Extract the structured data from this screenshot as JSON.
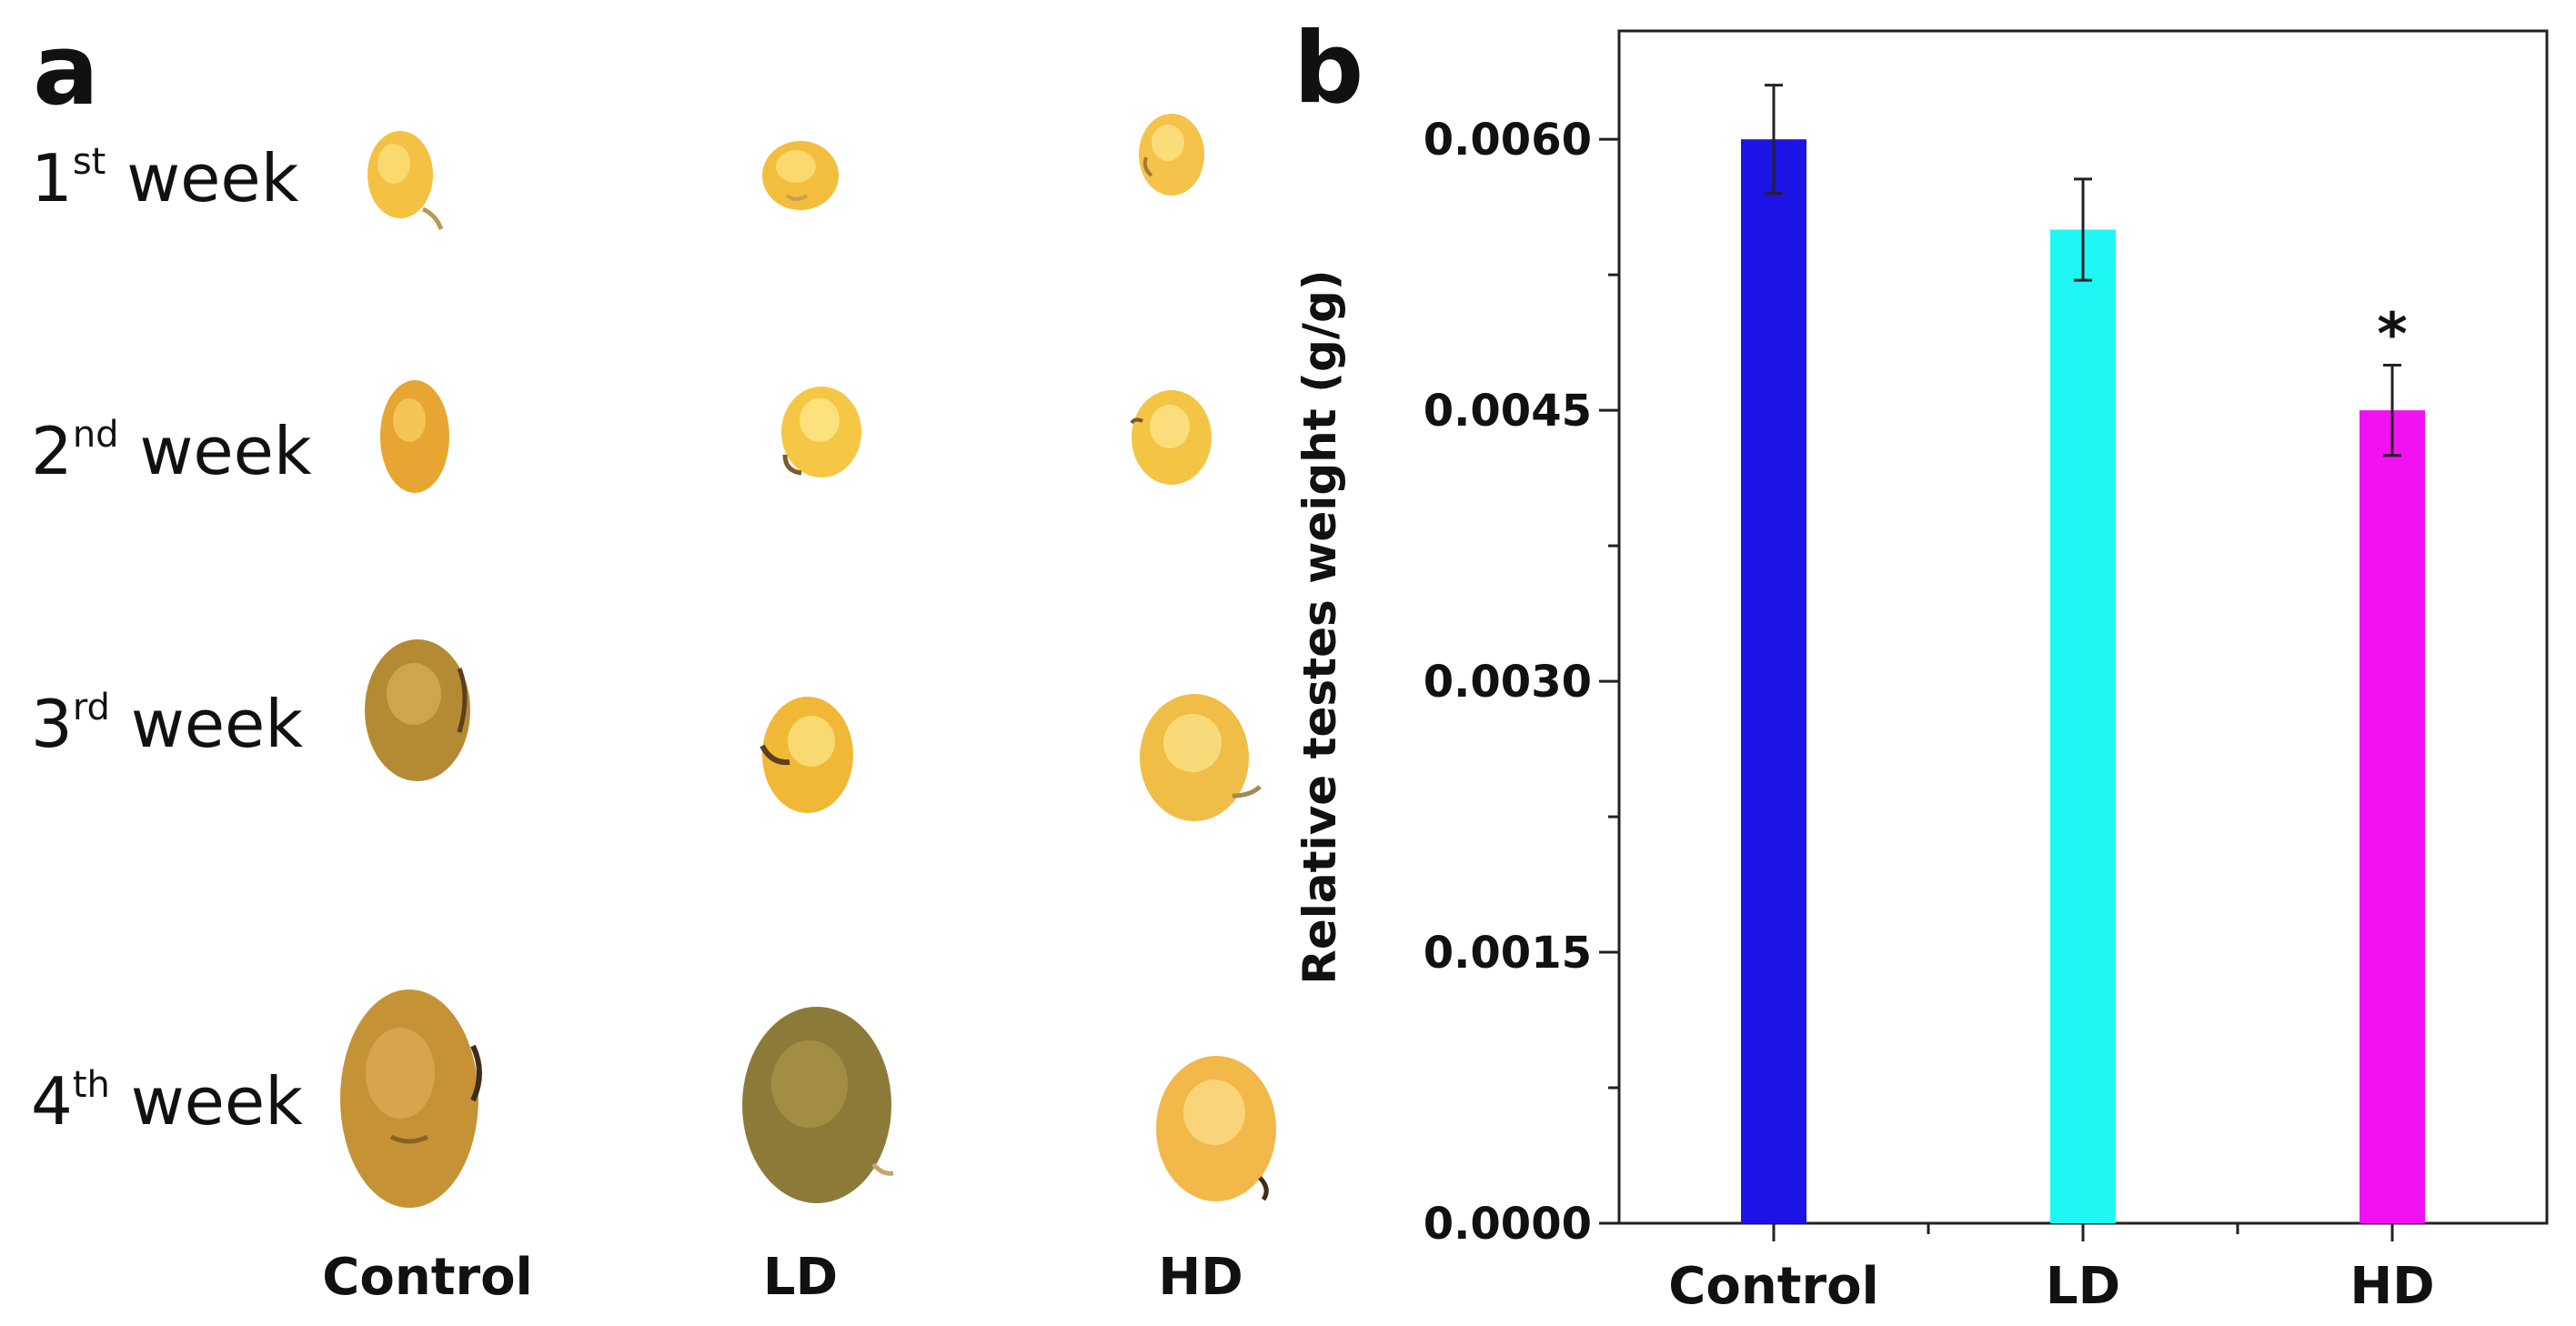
{
  "panel_a": {
    "letter": "a",
    "weeks": [
      {
        "num": "1",
        "sup": "st",
        "word": "week"
      },
      {
        "num": "2",
        "sup": "nd",
        "word": "week"
      },
      {
        "num": "3",
        "sup": "rd",
        "word": "week"
      },
      {
        "num": "4",
        "sup": "th",
        "word": "week"
      }
    ],
    "columns": [
      "Control",
      "LD",
      "HD"
    ]
  },
  "panel_b": {
    "letter": "b"
  },
  "chart_data": {
    "type": "bar",
    "title": "",
    "xlabel": "",
    "ylabel": "Relative testes weight (g/g)",
    "categories": [
      "Control",
      "LD",
      "HD"
    ],
    "values": [
      0.006,
      0.0055,
      0.0045
    ],
    "errors": [
      0.0003,
      0.00028,
      0.00025
    ],
    "colors": [
      "#1c13e6",
      "#1ff7f4",
      "#f012f0"
    ],
    "significance": [
      "",
      "",
      "*"
    ],
    "ylim": [
      0,
      0.0066
    ],
    "yticks": [
      0.0,
      0.0015,
      0.003,
      0.0045,
      0.006
    ],
    "ytick_labels": [
      "0.0000",
      "0.0015",
      "0.0030",
      "0.0045",
      "0.0060"
    ],
    "grid": false,
    "legend": "none"
  }
}
